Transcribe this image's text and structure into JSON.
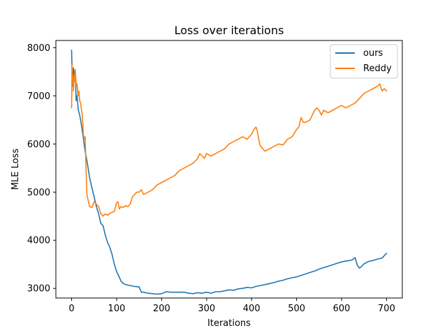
{
  "chart_data": {
    "type": "line",
    "title": "Loss over iterations",
    "xlabel": "Iterations",
    "ylabel": "MLE Loss",
    "xlim": [
      -35,
      735
    ],
    "ylim": [
      2800,
      8150
    ],
    "x_ticks": [
      0,
      100,
      200,
      300,
      400,
      500,
      600,
      700
    ],
    "y_ticks": [
      3000,
      4000,
      5000,
      6000,
      7000,
      8000
    ],
    "grid": false,
    "legend_position": "top-right",
    "series": [
      {
        "name": "ours",
        "color": "#1f77b4",
        "x": [
          0,
          2,
          4,
          6,
          8,
          10,
          12,
          15,
          18,
          20,
          25,
          30,
          35,
          40,
          45,
          50,
          55,
          60,
          65,
          70,
          75,
          80,
          85,
          90,
          95,
          100,
          105,
          110,
          115,
          120,
          130,
          140,
          150,
          155,
          160,
          170,
          180,
          190,
          200,
          210,
          220,
          230,
          240,
          250,
          260,
          270,
          280,
          290,
          300,
          310,
          320,
          330,
          340,
          350,
          360,
          370,
          380,
          390,
          400,
          410,
          420,
          430,
          440,
          450,
          460,
          470,
          480,
          490,
          500,
          510,
          520,
          530,
          540,
          550,
          560,
          570,
          580,
          590,
          600,
          610,
          620,
          625,
          630,
          635,
          640,
          645,
          650,
          660,
          670,
          680,
          690,
          695,
          700
        ],
        "y": [
          7950,
          7200,
          7580,
          7400,
          7550,
          6900,
          7000,
          6700,
          6600,
          6500,
          6200,
          5850,
          5600,
          5300,
          5100,
          4900,
          4700,
          4550,
          4350,
          4300,
          4100,
          3950,
          3850,
          3700,
          3500,
          3350,
          3250,
          3150,
          3100,
          3080,
          3060,
          3040,
          3030,
          2920,
          2920,
          2900,
          2890,
          2880,
          2890,
          2930,
          2920,
          2920,
          2920,
          2920,
          2900,
          2890,
          2910,
          2900,
          2920,
          2900,
          2930,
          2930,
          2950,
          2970,
          2960,
          2990,
          3000,
          3020,
          3010,
          3040,
          3060,
          3080,
          3100,
          3120,
          3150,
          3170,
          3200,
          3220,
          3240,
          3270,
          3300,
          3330,
          3360,
          3400,
          3430,
          3460,
          3490,
          3520,
          3550,
          3570,
          3580,
          3600,
          3640,
          3480,
          3420,
          3460,
          3510,
          3560,
          3580,
          3610,
          3630,
          3680,
          3730
        ]
      },
      {
        "name": "Reddy",
        "color": "#ff7f0e",
        "x": [
          0,
          1,
          2,
          3,
          4,
          5,
          6,
          7,
          8,
          9,
          10,
          12,
          14,
          16,
          18,
          20,
          22,
          24,
          26,
          28,
          30,
          32,
          34,
          35,
          37,
          40,
          45,
          50,
          55,
          60,
          65,
          70,
          75,
          80,
          85,
          90,
          95,
          100,
          103,
          106,
          110,
          115,
          120,
          125,
          130,
          135,
          140,
          145,
          150,
          155,
          160,
          170,
          180,
          190,
          200,
          210,
          220,
          230,
          240,
          250,
          260,
          270,
          280,
          285,
          290,
          295,
          300,
          310,
          320,
          330,
          340,
          350,
          360,
          370,
          380,
          390,
          400,
          405,
          410,
          412,
          415,
          418,
          420,
          430,
          440,
          450,
          460,
          470,
          480,
          490,
          500,
          505,
          510,
          515,
          520,
          530,
          540,
          545,
          550,
          555,
          560,
          570,
          580,
          590,
          600,
          610,
          620,
          630,
          640,
          650,
          660,
          670,
          680,
          685,
          690,
          695,
          700
        ],
        "y": [
          6750,
          7650,
          7300,
          7400,
          7100,
          7350,
          7450,
          7300,
          7550,
          7400,
          7200,
          7250,
          7000,
          7100,
          6900,
          6850,
          6700,
          6600,
          6200,
          6100,
          6150,
          5500,
          4950,
          4900,
          4820,
          4700,
          4680,
          4800,
          4750,
          4700,
          4550,
          4500,
          4550,
          4520,
          4560,
          4580,
          4600,
          4780,
          4800,
          4650,
          4700,
          4680,
          4720,
          4700,
          4750,
          4900,
          4950,
          5000,
          5000,
          5050,
          4950,
          5000,
          5050,
          5150,
          5200,
          5250,
          5300,
          5350,
          5450,
          5500,
          5550,
          5600,
          5700,
          5800,
          5750,
          5700,
          5800,
          5750,
          5800,
          5850,
          5900,
          6000,
          6050,
          6100,
          6150,
          6100,
          6200,
          6300,
          6350,
          6300,
          6150,
          6000,
          5950,
          5850,
          5900,
          5950,
          6000,
          5980,
          6100,
          6150,
          6300,
          6350,
          6550,
          6450,
          6450,
          6500,
          6700,
          6750,
          6700,
          6600,
          6700,
          6650,
          6700,
          6750,
          6800,
          6750,
          6800,
          6850,
          6950,
          7050,
          7100,
          7150,
          7200,
          7250,
          7100,
          7150,
          7100
        ]
      }
    ]
  }
}
